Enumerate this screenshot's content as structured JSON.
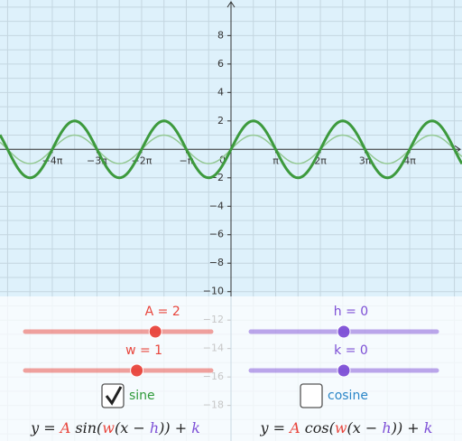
{
  "graph": {
    "xlim": [
      -5.17,
      5.17
    ],
    "ylim": [
      -20.5,
      10.5
    ],
    "xticks": [
      {
        "value": -4,
        "label": "−4π"
      },
      {
        "value": -3,
        "label": "−3π"
      },
      {
        "value": -2,
        "label": "−2π"
      },
      {
        "value": -1,
        "label": "−π"
      },
      {
        "value": 1,
        "label": "π"
      },
      {
        "value": 2,
        "label": "2π"
      },
      {
        "value": 3,
        "label": "3π"
      },
      {
        "value": 4,
        "label": "4π"
      }
    ],
    "yticks": [
      8,
      6,
      4,
      2,
      {
        "value": -2,
        "label": "−2"
      },
      {
        "value": -4,
        "label": "−4"
      },
      {
        "value": -6,
        "label": "−6"
      },
      {
        "value": -8,
        "label": "−8"
      },
      {
        "value": -10,
        "label": "−10"
      },
      {
        "value": -12,
        "label": "−12"
      },
      {
        "value": -14,
        "label": "−14"
      },
      {
        "value": -16,
        "label": "−16"
      },
      {
        "value": -18,
        "label": "−18"
      }
    ],
    "origin_label": "0",
    "grid": true
  },
  "sliders": [
    {
      "label": "A = 2",
      "value": 2,
      "range": [
        -5,
        5
      ],
      "color": "#e8453c"
    },
    {
      "label": "w = 1",
      "value": 1,
      "range": [
        -5,
        5
      ],
      "color": "#e8453c"
    },
    {
      "label": "h = 0",
      "value": 0,
      "range": [
        -5,
        5
      ],
      "color": "#7d4fd6"
    },
    {
      "label": "k = 0",
      "value": 0,
      "range": [
        -5,
        5
      ],
      "color": "#7d4fd6"
    }
  ],
  "checkboxes": [
    {
      "label": "sine",
      "checked": true,
      "color": "#2f9a3a"
    },
    {
      "label": "cosine",
      "checked": false,
      "color": "#2b86c8"
    }
  ],
  "formulas": [
    [
      {
        "text": "y = "
      },
      {
        "text": "A",
        "color": "#e8453c"
      },
      {
        "text": " sin("
      },
      {
        "text": "w",
        "color": "#e8453c"
      },
      {
        "text": "(x − "
      },
      {
        "text": "h",
        "color": "#7d4fd6"
      },
      {
        "text": ")) + "
      },
      {
        "text": "k",
        "color": "#7d4fd6"
      }
    ],
    [
      {
        "text": "y = "
      },
      {
        "text": "A",
        "color": "#e8453c"
      },
      {
        "text": " cos("
      },
      {
        "text": "w",
        "color": "#e8453c"
      },
      {
        "text": "(x − "
      },
      {
        "text": "h",
        "color": "#7d4fd6"
      },
      {
        "text": ")) + "
      },
      {
        "text": "k",
        "color": "#7d4fd6"
      }
    ]
  ]
}
